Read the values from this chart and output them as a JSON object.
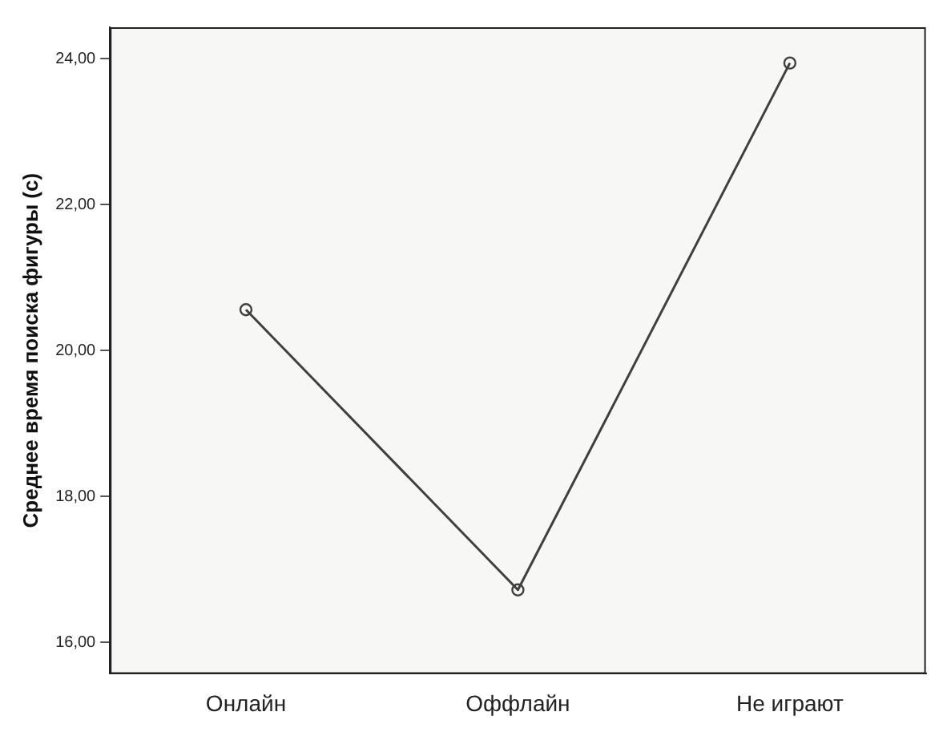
{
  "chart_data": {
    "type": "line",
    "ylabel": "Среднее время поиска фигуры (с)",
    "categories": [
      "Онлайн",
      "Оффлайн",
      "Не играют"
    ],
    "series": [
      {
        "color": "#404040",
        "values": [
          20.56,
          16.72,
          23.94
        ]
      }
    ],
    "ylim": [
      15.57,
      24.43
    ],
    "yticks": [
      {
        "value": 16,
        "label": "16,00"
      },
      {
        "value": 18,
        "label": "18,00"
      },
      {
        "value": 20,
        "label": "20,00"
      },
      {
        "value": 22,
        "label": "22,00"
      },
      {
        "value": 24,
        "label": "24,00"
      }
    ],
    "grid": false,
    "legend": false,
    "marker": "circle",
    "line_style": "solid"
  }
}
